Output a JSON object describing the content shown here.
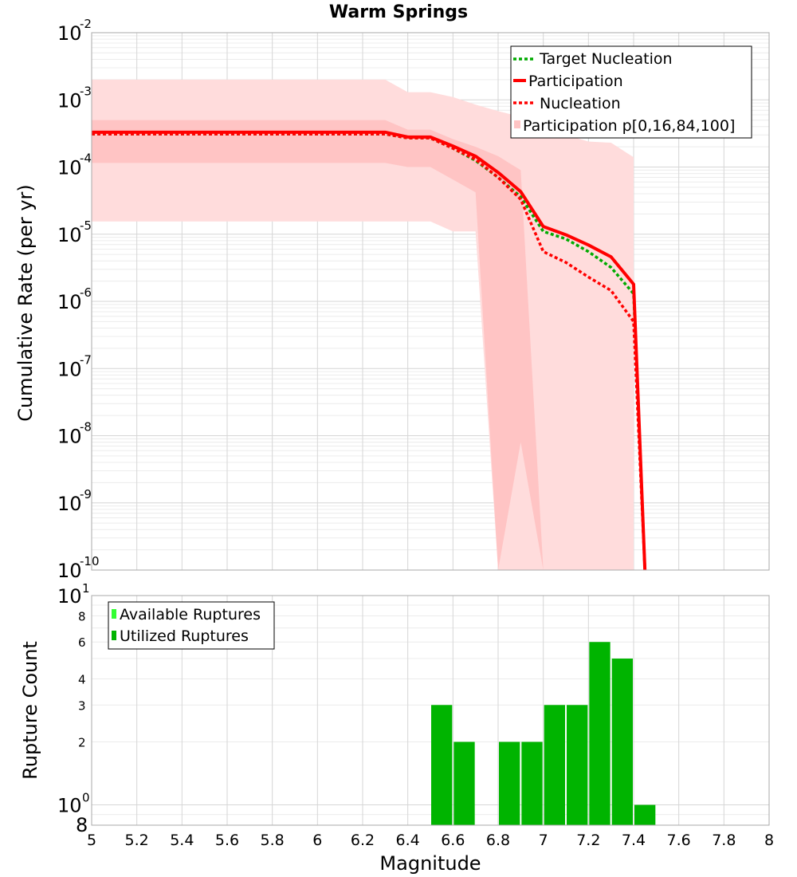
{
  "chart_data": [
    {
      "type": "line",
      "title": "Warm Springs",
      "xlabel": "",
      "ylabel": "Cumulative Rate (per yr)",
      "xlim": [
        5,
        8
      ],
      "ylim": [
        1e-10,
        0.01
      ],
      "yscale": "log",
      "ytick_labels": [
        {
          "base": "10",
          "exp": "-2"
        },
        {
          "base": "10",
          "exp": "-3"
        },
        {
          "base": "10",
          "exp": "-4"
        },
        {
          "base": "10",
          "exp": "-5"
        },
        {
          "base": "10",
          "exp": "-6"
        },
        {
          "base": "10",
          "exp": "-7"
        },
        {
          "base": "10",
          "exp": "-8"
        },
        {
          "base": "10",
          "exp": "-9"
        },
        {
          "base": "10",
          "exp": "-10"
        }
      ],
      "legend_position": "top-right",
      "legend": [
        "Target Nucleation",
        "Participation",
        "Nucleation",
        "Participation p[0,16,84,100]"
      ],
      "series": [
        {
          "name": "Target Nucleation",
          "style": "dotted",
          "color": "#00aa00",
          "x": [
            5.0,
            5.5,
            6.0,
            6.3,
            6.4,
            6.5,
            6.6,
            6.7,
            6.8,
            6.9,
            7.0,
            7.1,
            7.2,
            7.3,
            7.4,
            7.45
          ],
          "y": [
            0.00031,
            0.00031,
            0.00031,
            0.00031,
            0.00027,
            0.00027,
            0.00019,
            0.000125,
            7e-05,
            3.6e-05,
            1.1e-05,
            8.5e-06,
            5.5e-06,
            3.2e-06,
            1.3e-06,
            1e-10
          ]
        },
        {
          "name": "Participation",
          "style": "solid",
          "color": "#ff0000",
          "x": [
            5.0,
            5.5,
            6.0,
            6.3,
            6.4,
            6.5,
            6.6,
            6.7,
            6.8,
            6.9,
            7.0,
            7.1,
            7.2,
            7.3,
            7.4,
            7.45
          ],
          "y": [
            0.00033,
            0.00033,
            0.00033,
            0.00033,
            0.00028,
            0.00028,
            0.000205,
            0.000145,
            8.3e-05,
            4.3e-05,
            1.3e-05,
            9.8e-06,
            6.9e-06,
            4.6e-06,
            1.8e-06,
            1e-10
          ]
        },
        {
          "name": "Nucleation",
          "style": "dotted",
          "color": "#ff0000",
          "x": [
            5.0,
            5.5,
            6.0,
            6.3,
            6.4,
            6.5,
            6.6,
            6.7,
            6.8,
            6.9,
            7.0,
            7.1,
            7.2,
            7.3,
            7.4,
            7.45
          ],
          "y": [
            0.00031,
            0.00031,
            0.00031,
            0.00031,
            0.00027,
            0.00027,
            0.00019,
            0.00013,
            7e-05,
            3.3e-05,
            5.5e-06,
            3.8e-06,
            2.3e-06,
            1.45e-06,
            5e-07,
            1e-10
          ]
        }
      ],
      "bands": [
        {
          "name": "Participation p[0,100]",
          "color": "#ffdcdc",
          "x": [
            5.0,
            6.3,
            6.4,
            6.5,
            6.6,
            6.7,
            6.8,
            6.9,
            7.0,
            7.1,
            7.2,
            7.3,
            7.4
          ],
          "lower": [
            1.55e-05,
            1.55e-05,
            1.55e-05,
            1.55e-05,
            1.1e-05,
            1.1e-05,
            1e-10,
            1e-10,
            1e-10,
            1e-10,
            1e-10,
            1e-10,
            1e-10
          ],
          "upper": [
            0.002,
            0.002,
            0.0013,
            0.0013,
            0.0011,
            0.00085,
            0.00068,
            0.00056,
            0.00037,
            0.0003,
            0.00024,
            0.00023,
            0.00014
          ]
        },
        {
          "name": "Participation p[16,84]",
          "color": "#ffc4c4",
          "x": [
            5.0,
            6.3,
            6.4,
            6.5,
            6.6,
            6.7,
            6.8,
            6.9,
            7.0
          ],
          "lower": [
            0.000115,
            0.000115,
            0.0001,
            0.0001,
            6.5e-05,
            4.2e-05,
            1e-10,
            8e-09,
            1e-10
          ],
          "upper": [
            0.0005,
            0.0005,
            0.00036,
            0.00036,
            0.00026,
            0.0002,
            0.000145,
            9e-05,
            1e-10
          ]
        }
      ]
    },
    {
      "type": "bar",
      "title": "",
      "xlabel": "Magnitude",
      "ylabel": "Rupture Count",
      "xlim": [
        5,
        8
      ],
      "yscale": "log",
      "x_ticks": [
        "5",
        "5.2",
        "5.4",
        "5.6",
        "5.8",
        "6",
        "6.2",
        "6.4",
        "6.6",
        "6.8",
        "7",
        "7.2",
        "7.4",
        "7.6",
        "7.8",
        "8"
      ],
      "ytick_labels": [
        {
          "base": "10",
          "exp": "1"
        },
        {
          "base": "10",
          "exp": "0"
        }
      ],
      "y_minor_labels": [
        "8",
        "6",
        "4",
        "3",
        "2",
        "8"
      ],
      "legend_position": "top-left",
      "legend": [
        "Available Ruptures",
        "Utilized Ruptures"
      ],
      "bar_width": 0.1,
      "series": [
        {
          "name": "Utilized Ruptures",
          "color": "#00b400",
          "x": [
            6.55,
            6.65,
            6.85,
            6.95,
            7.05,
            7.15,
            7.25,
            7.35,
            7.45
          ],
          "values": [
            3,
            2,
            2,
            2,
            3,
            3,
            6,
            5,
            1
          ]
        }
      ],
      "colors": {
        "available": "#33ff33",
        "utilized": "#00b400"
      }
    }
  ]
}
